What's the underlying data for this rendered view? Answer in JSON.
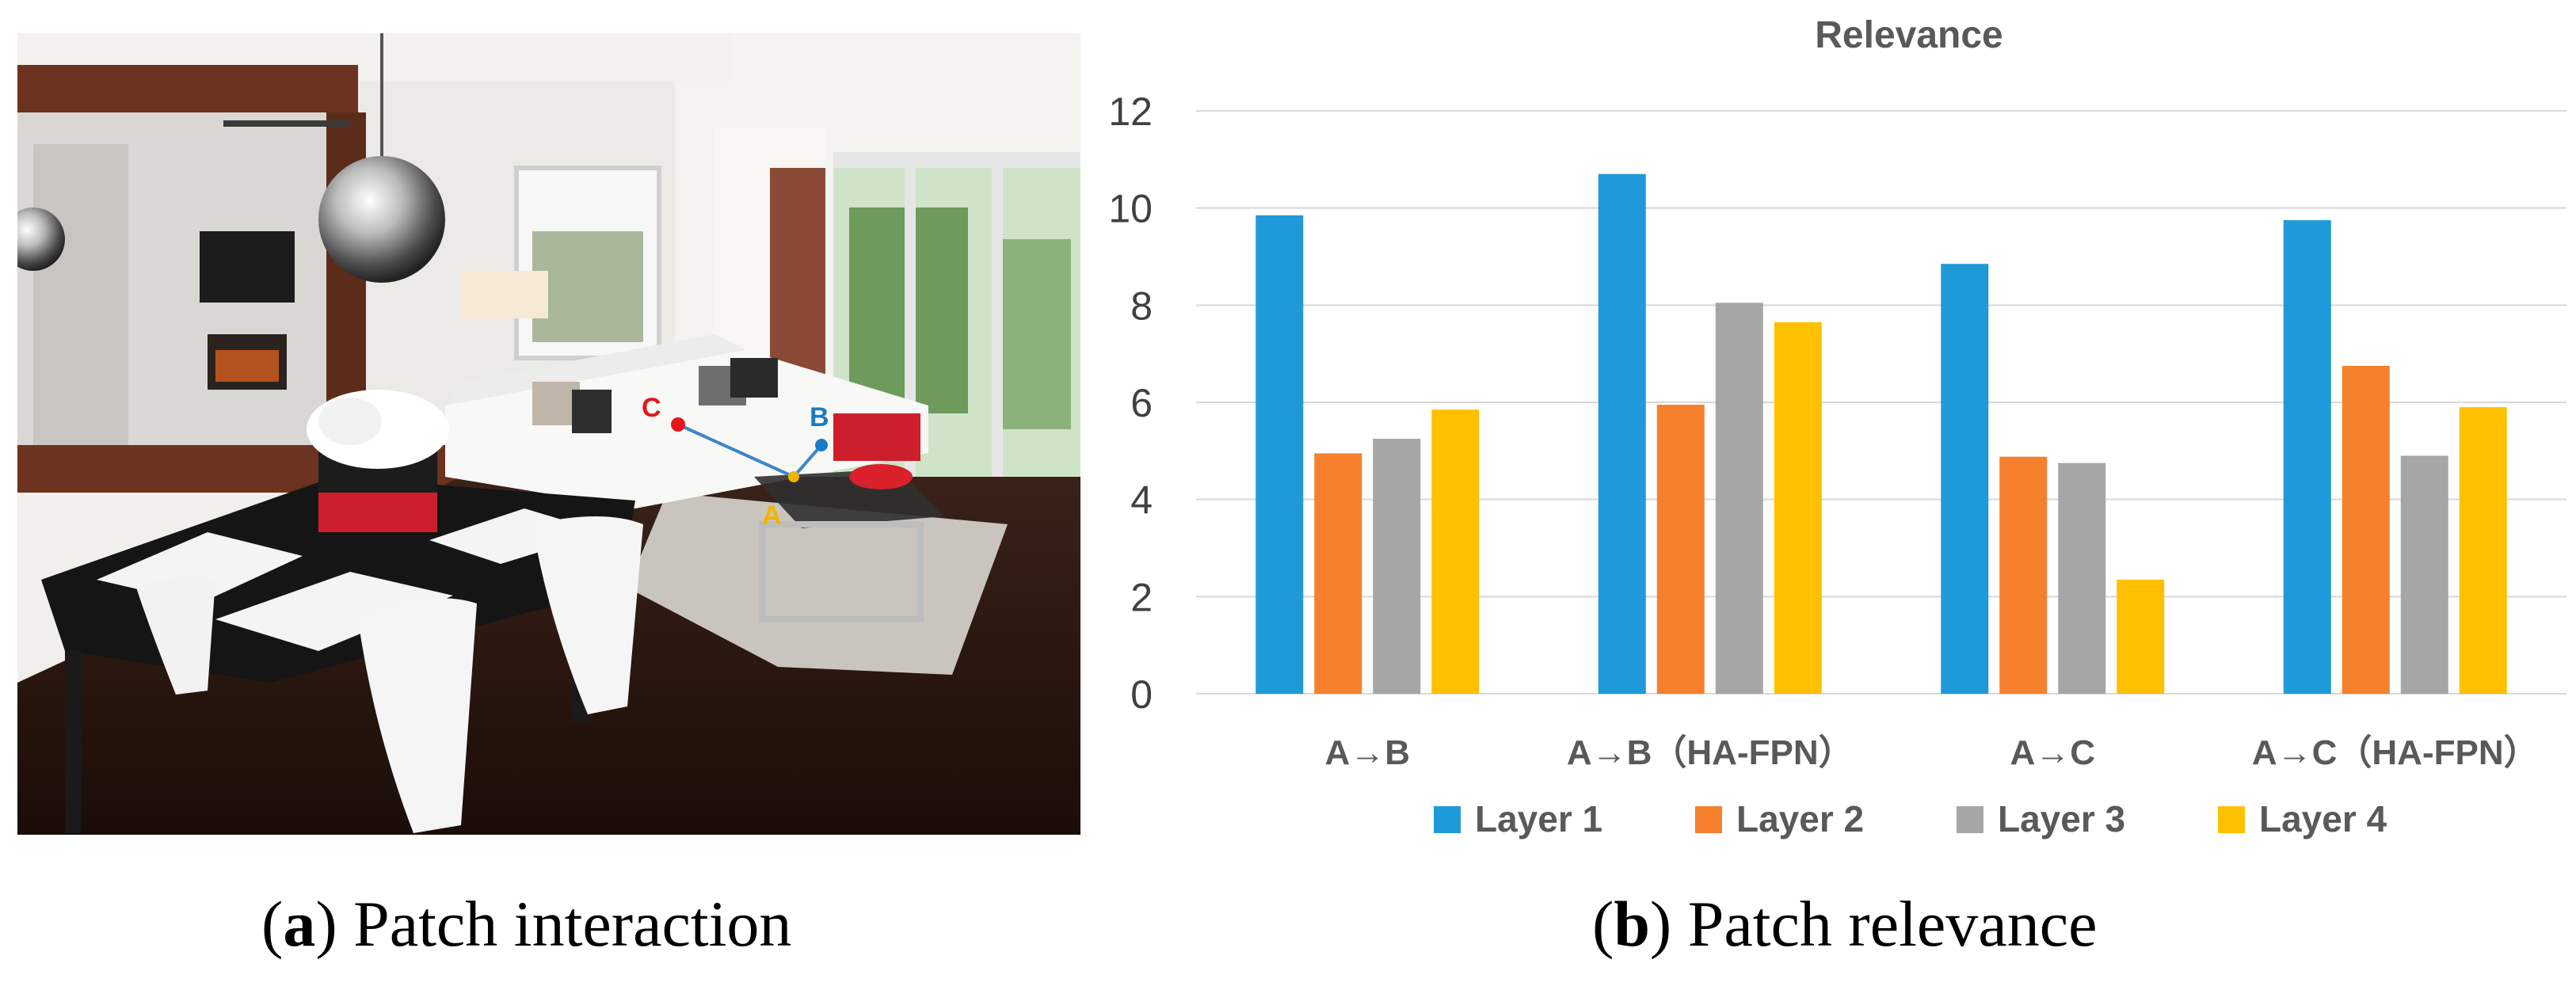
{
  "photo": {
    "points": [
      {
        "label": "A",
        "color": "#f0b400"
      },
      {
        "label": "B",
        "color": "#1a7bc4"
      },
      {
        "label": "C",
        "color": "#e4151b"
      }
    ]
  },
  "captions": {
    "a": {
      "letter": "a",
      "text": " Patch interaction"
    },
    "b": {
      "letter": "b",
      "text": " Patch relevance"
    }
  },
  "chart_data": {
    "type": "bar",
    "title": "Relevance",
    "xlabel": "",
    "ylabel": "",
    "categories": [
      "A→B",
      "A→B（HA-FPN）",
      "A→C",
      "A→C（HA-FPN）"
    ],
    "ylim": [
      0,
      12
    ],
    "yticks": [
      0,
      2,
      4,
      6,
      8,
      10,
      12
    ],
    "grid": true,
    "legend": "bottom",
    "series": [
      {
        "name": "Layer 1",
        "color": "#1f9ad9",
        "values": [
          9.85,
          10.7,
          8.85,
          9.75
        ]
      },
      {
        "name": "Layer 2",
        "color": "#f6802b",
        "values": [
          4.95,
          5.95,
          4.88,
          6.75
        ]
      },
      {
        "name": "Layer 3",
        "color": "#a6a6a6",
        "values": [
          5.25,
          8.05,
          4.75,
          4.9
        ]
      },
      {
        "name": "Layer 4",
        "color": "#ffc000",
        "values": [
          5.85,
          7.65,
          2.35,
          5.9
        ]
      }
    ]
  }
}
